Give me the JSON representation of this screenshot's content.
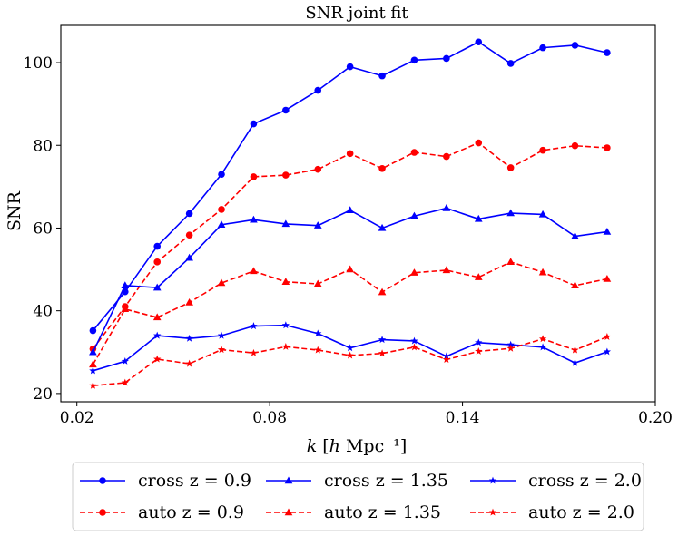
{
  "chart_data": {
    "type": "line",
    "title": "SNR joint fit",
    "xlabel": "k [h Mpc⁻¹]",
    "ylabel": "SNR",
    "xlim": [
      0.015,
      0.2
    ],
    "ylim": [
      18,
      109
    ],
    "xticks": [
      0.02,
      0.08,
      0.14,
      0.2
    ],
    "xtick_labels": [
      "0.02",
      "0.08",
      "0.14",
      "0.20"
    ],
    "yticks": [
      20,
      40,
      60,
      80,
      100
    ],
    "ytick_labels": [
      "20",
      "40",
      "60",
      "80",
      "100"
    ],
    "grid": false,
    "legend_position": "bottom-outside",
    "x": [
      0.025,
      0.035,
      0.045,
      0.055,
      0.065,
      0.075,
      0.085,
      0.095,
      0.105,
      0.115,
      0.125,
      0.135,
      0.145,
      0.155,
      0.165,
      0.175,
      0.185
    ],
    "series": [
      {
        "name": "cross z = 0.9",
        "color": "#0000ff",
        "dash": "solid",
        "marker": "circle",
        "values": [
          35.2,
          44.6,
          55.6,
          63.5,
          73.0,
          85.2,
          88.5,
          93.3,
          99.0,
          96.8,
          100.6,
          101.0,
          105.0,
          99.8,
          103.6,
          104.2,
          102.4
        ]
      },
      {
        "name": "auto z = 0.9",
        "color": "#ff0000",
        "dash": "dashed",
        "marker": "circle",
        "values": [
          30.8,
          41.0,
          51.8,
          58.3,
          64.5,
          72.4,
          72.8,
          74.2,
          78.0,
          74.4,
          78.3,
          77.3,
          80.6,
          74.6,
          78.8,
          79.9,
          79.4
        ]
      },
      {
        "name": "cross z = 1.35",
        "color": "#0000ff",
        "dash": "solid",
        "marker": "triangle",
        "values": [
          30.0,
          46.1,
          45.6,
          52.8,
          60.8,
          62.0,
          61.0,
          60.6,
          64.3,
          60.0,
          62.9,
          64.8,
          62.2,
          63.6,
          63.3,
          58.0,
          59.1
        ]
      },
      {
        "name": "auto z = 1.35",
        "color": "#ff0000",
        "dash": "dashed",
        "marker": "triangle",
        "values": [
          27.0,
          40.4,
          38.4,
          42.0,
          46.7,
          49.6,
          47.0,
          46.5,
          50.0,
          44.5,
          49.2,
          49.8,
          48.1,
          51.8,
          49.3,
          46.1,
          47.7
        ]
      },
      {
        "name": "cross z = 2.0",
        "color": "#0000ff",
        "dash": "solid",
        "marker": "star",
        "values": [
          25.5,
          27.8,
          34.0,
          33.3,
          34.0,
          36.3,
          36.5,
          34.5,
          31.0,
          33.0,
          32.7,
          29.0,
          32.3,
          31.8,
          31.2,
          27.4,
          30.1
        ]
      },
      {
        "name": "auto z = 2.0",
        "color": "#ff0000",
        "dash": "dashed",
        "marker": "star",
        "values": [
          21.9,
          22.6,
          28.3,
          27.2,
          30.6,
          29.8,
          31.3,
          30.5,
          29.2,
          29.7,
          31.2,
          28.2,
          30.2,
          30.9,
          33.2,
          30.5,
          33.7
        ]
      }
    ],
    "legend_order": [
      0,
      2,
      4,
      1,
      3,
      5
    ]
  }
}
